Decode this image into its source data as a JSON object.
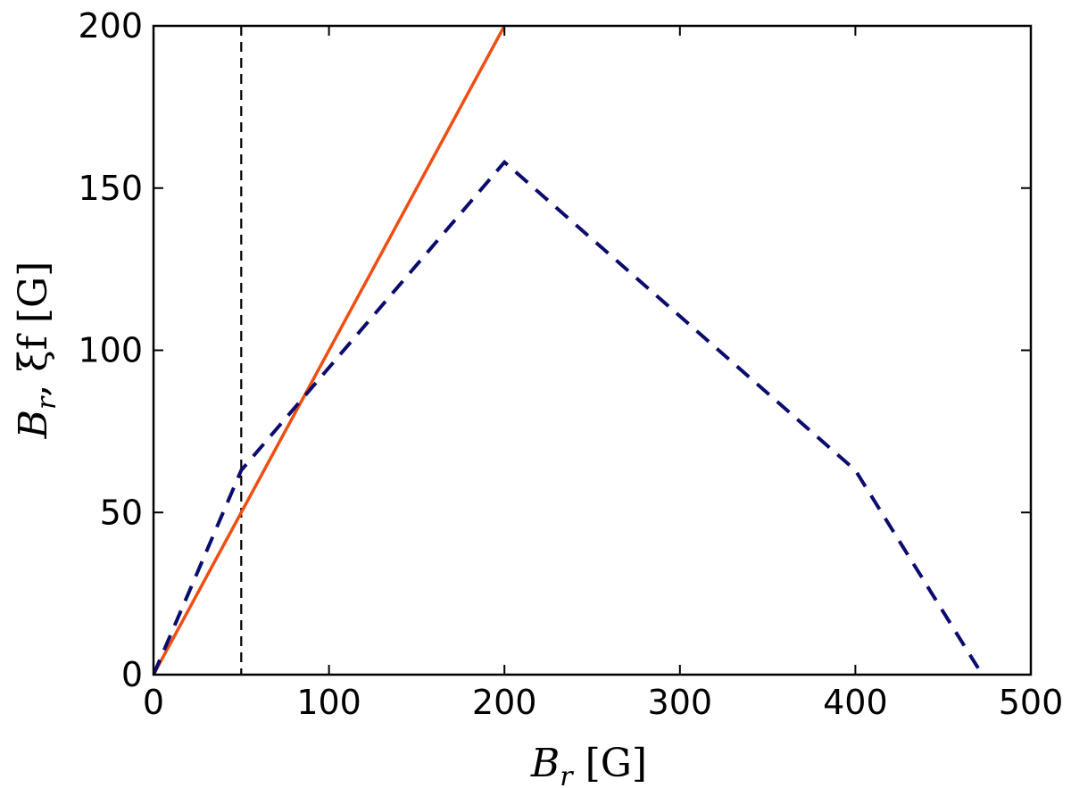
{
  "chart_data": {
    "type": "line",
    "xlabel": {
      "main": "B",
      "sub": "r",
      "unit": " [G]"
    },
    "ylabel": {
      "main": "B",
      "sub": "r",
      "rest": ", ξf [G]"
    },
    "xlim": [
      0,
      500
    ],
    "ylim": [
      0,
      200
    ],
    "xticks": [
      0,
      100,
      200,
      300,
      400,
      500
    ],
    "yticks": [
      0,
      50,
      100,
      150,
      200
    ],
    "grid": false,
    "series": [
      {
        "color": "#f04e12",
        "style": "solid",
        "x": [
          0,
          200
        ],
        "y": [
          0,
          200
        ]
      },
      {
        "color": "#0b0b6e",
        "style": "dashed",
        "x": [
          0,
          50,
          200,
          400,
          470
        ],
        "y": [
          0,
          63,
          158,
          63,
          2
        ]
      }
    ],
    "reference_lines": [
      {
        "orientation": "vertical",
        "x": 50,
        "color": "#000000",
        "style": "dashed"
      }
    ]
  }
}
